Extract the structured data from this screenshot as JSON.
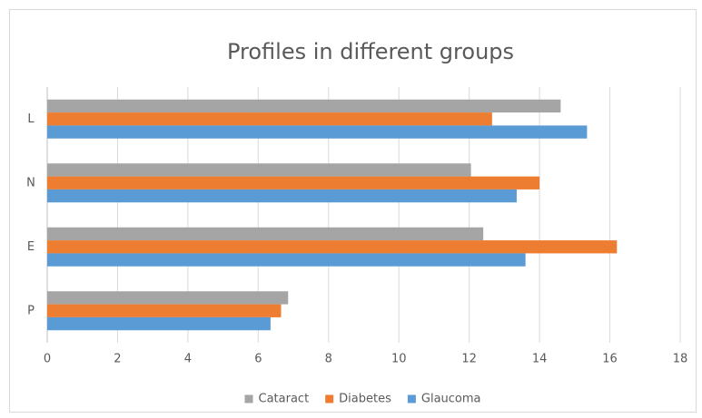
{
  "chart_data": {
    "type": "hbar",
    "title": "Profiles  in different groups",
    "categories": [
      "L",
      "N",
      "E",
      "P"
    ],
    "series": [
      {
        "name": "Cataract",
        "color": "#a5a5a5",
        "values": [
          14.6,
          12.05,
          12.4,
          6.85
        ]
      },
      {
        "name": "Diabetes",
        "color": "#ed7d31",
        "values": [
          12.65,
          14,
          16.2,
          6.65
        ]
      },
      {
        "name": "Glaucoma",
        "color": "#5b9bd5",
        "values": [
          15.35,
          13.35,
          13.6,
          6.35
        ]
      }
    ],
    "xlim": [
      0,
      18
    ],
    "xticks": [
      0,
      2,
      4,
      6,
      8,
      10,
      12,
      14,
      16,
      18
    ],
    "grid": true,
    "legend": "bottom"
  }
}
